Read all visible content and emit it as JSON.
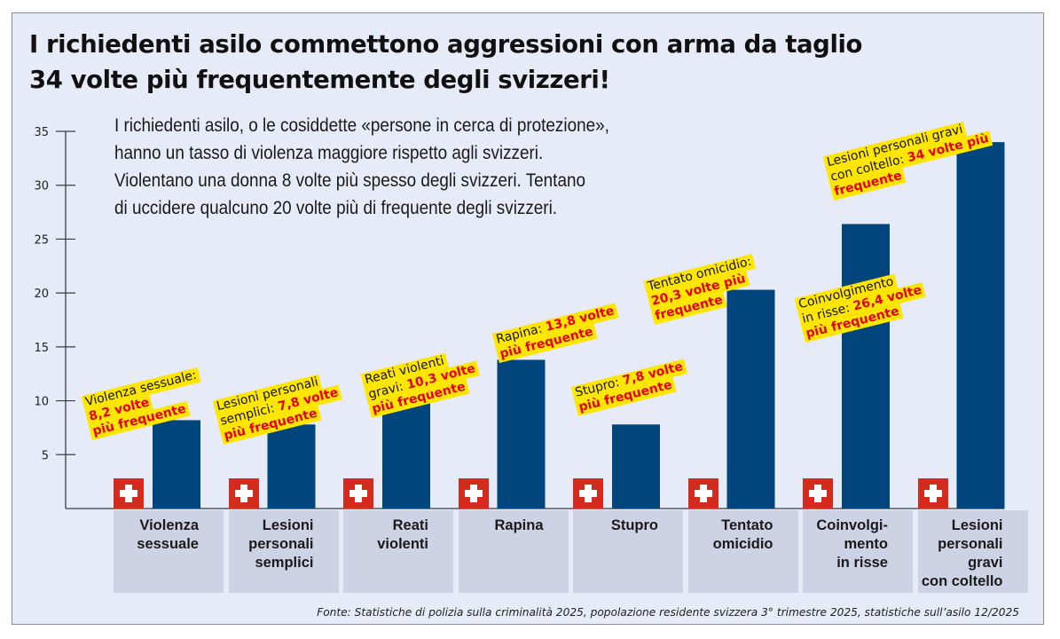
{
  "header": {
    "title_line1": "I richiedenti asilo commettono aggressioni con arma da taglio",
    "title_line2": "34 volte più frequentemente degli svizzeri!"
  },
  "subtitle_lines": [
    "I richiedenti asilo, o le cosiddette «persone in cerca di protezione»,",
    "hanno un tasso di violenza maggiore rispetto agli svizzeri.",
    "Violentano una donna 8 volte più spesso degli svizzeri. Tentano",
    "di uccidere qualcuno 20 volte più di frequente degli svizzeri."
  ],
  "colors": {
    "background": "#e7eaf7",
    "bar": "#00457c",
    "swiss_flag": "#d52b1e",
    "highlight": "#ffe600",
    "highlight_text": "#e3000f",
    "category_box": "#cdd3e4"
  },
  "chart_data": {
    "type": "bar",
    "title": "I richiedenti asilo commettono aggressioni con arma da taglio 34 volte più frequentemente degli svizzeri!",
    "xlabel": "",
    "ylabel": "",
    "ylim": [
      0,
      35
    ],
    "yticks": [
      5,
      10,
      15,
      20,
      25,
      30,
      35
    ],
    "grid": false,
    "categories": [
      "Violenza\nsessuale",
      "Lesioni\npersonali\nsemplici",
      "Reati\nviolenti",
      "Rapina",
      "Stupro",
      "Tentato\nomicidio",
      "Coinvolgi-\nmento\nin risse",
      "Lesioni\npersonali\ngravi\ncon coltello"
    ],
    "series": [
      {
        "name": "Svizzeri (baseline, Swiss flag)",
        "values": [
          1,
          1,
          1,
          1,
          1,
          1,
          1,
          1
        ]
      },
      {
        "name": "Richiedenti asilo",
        "values": [
          8.2,
          7.8,
          10.3,
          13.8,
          7.8,
          20.3,
          26.4,
          34
        ]
      }
    ],
    "annotations": [
      {
        "lines": [
          [
            {
              "t": "Violenza sessuale:",
              "c": "blk"
            }
          ],
          [
            {
              "t": "8,2 volte",
              "c": "red"
            }
          ],
          [
            {
              "t": "più frequente",
              "c": "red"
            }
          ]
        ]
      },
      {
        "lines": [
          [
            {
              "t": "Lesioni personali",
              "c": "blk"
            }
          ],
          [
            {
              "t": "semplici: ",
              "c": "blk"
            },
            {
              "t": "7,8 volte",
              "c": "red"
            }
          ],
          [
            {
              "t": "più frequente",
              "c": "red"
            }
          ]
        ]
      },
      {
        "lines": [
          [
            {
              "t": "Reati violenti",
              "c": "blk"
            }
          ],
          [
            {
              "t": "gravi: ",
              "c": "blk"
            },
            {
              "t": "10,3 volte",
              "c": "red"
            }
          ],
          [
            {
              "t": "più frequente",
              "c": "red"
            }
          ]
        ]
      },
      {
        "lines": [
          [
            {
              "t": "Rapina: ",
              "c": "blk"
            },
            {
              "t": "13,8 volte",
              "c": "red"
            }
          ],
          [
            {
              "t": "più frequente",
              "c": "red"
            }
          ]
        ]
      },
      {
        "lines": [
          [
            {
              "t": "Stupro: ",
              "c": "blk"
            },
            {
              "t": "7,8 volte",
              "c": "red"
            }
          ],
          [
            {
              "t": "più frequente",
              "c": "red"
            }
          ]
        ]
      },
      {
        "lines": [
          [
            {
              "t": "Tentato omicidio:",
              "c": "blk"
            }
          ],
          [
            {
              "t": "20,3 volte più",
              "c": "red"
            }
          ],
          [
            {
              "t": "frequente",
              "c": "red"
            }
          ]
        ]
      },
      {
        "lines": [
          [
            {
              "t": "Coinvolgimento",
              "c": "blk"
            }
          ],
          [
            {
              "t": "in risse: ",
              "c": "blk"
            },
            {
              "t": "26,4 volte",
              "c": "red"
            }
          ],
          [
            {
              "t": "più frequente",
              "c": "red"
            }
          ]
        ]
      },
      {
        "lines": [
          [
            {
              "t": "Lesioni personali gravi",
              "c": "blk"
            }
          ],
          [
            {
              "t": "con coltello: ",
              "c": "blk"
            },
            {
              "t": "34 volte più",
              "c": "red"
            }
          ],
          [
            {
              "t": "frequente",
              "c": "red"
            }
          ]
        ]
      }
    ],
    "legend": "none (Swiss flag icon marks the Swiss baseline bar)"
  },
  "source": "Fonte: Statistiche di polizia sulla criminalità 2025, popolazione residente svizzera 3° trimestre 2025, statistiche sull’asilo 12/2025"
}
